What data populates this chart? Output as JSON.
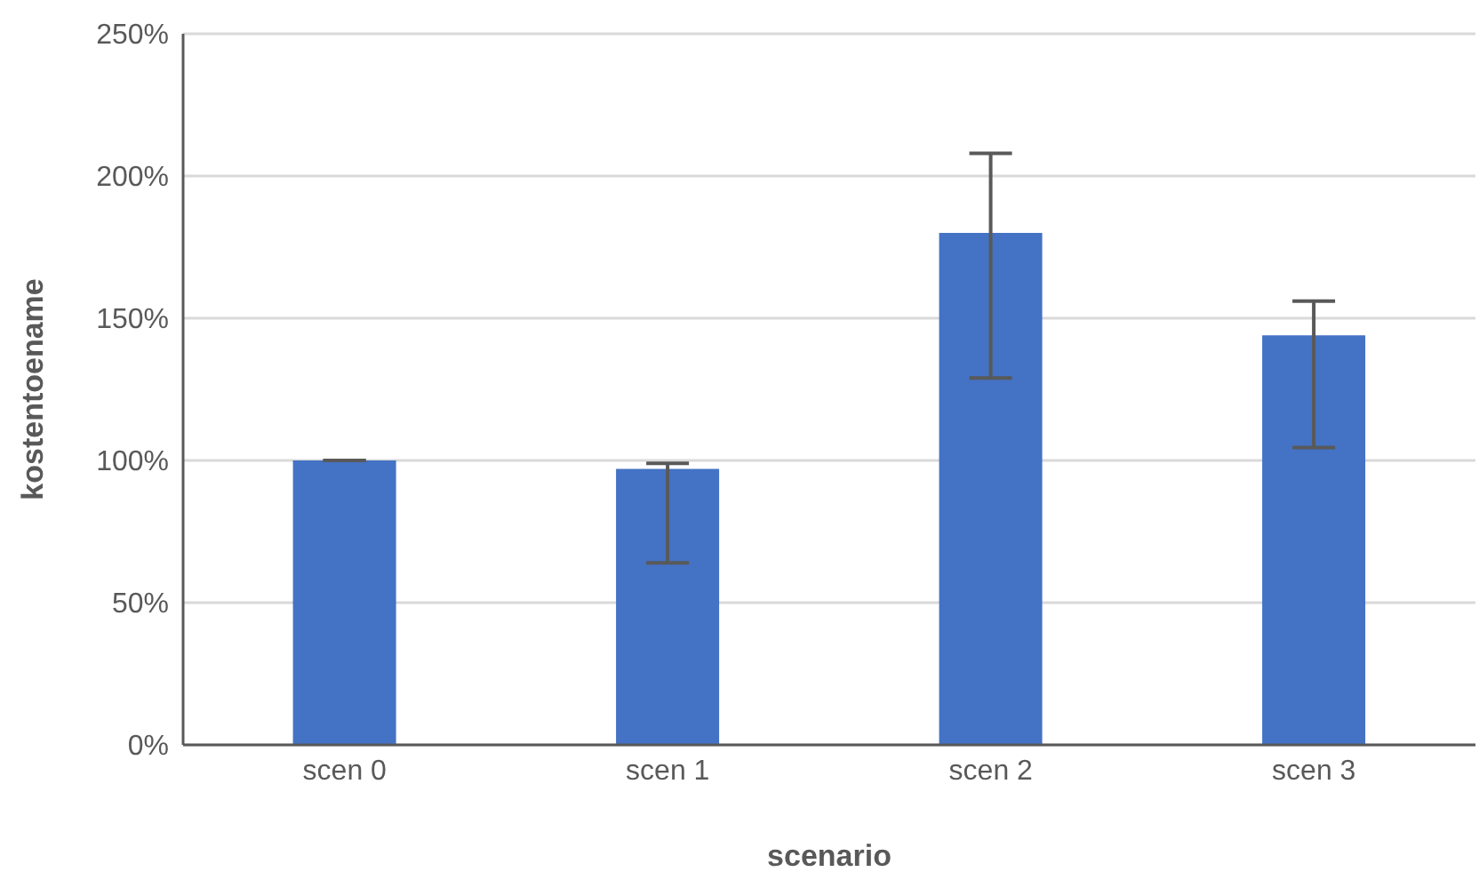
{
  "chart_data": {
    "type": "bar",
    "xlabel": "scenario",
    "ylabel": "kostentoename",
    "categories": [
      "scen 0",
      "scen 1",
      "scen 2",
      "scen 3"
    ],
    "values": [
      100,
      97,
      180,
      144
    ],
    "errors": [
      [
        100,
        100
      ],
      [
        64,
        99
      ],
      [
        129,
        208
      ],
      [
        104.5,
        156
      ]
    ],
    "color": "#4472c4",
    "ylim": [
      0,
      250
    ],
    "yticks": [
      {
        "value": 0,
        "label": "0%"
      },
      {
        "value": 50,
        "label": "50%"
      },
      {
        "value": 100,
        "label": "100%"
      },
      {
        "value": 150,
        "label": "150%"
      },
      {
        "value": 200,
        "label": "200%"
      },
      {
        "value": 250,
        "label": "250%"
      }
    ],
    "grid": "y",
    "legend": false
  }
}
